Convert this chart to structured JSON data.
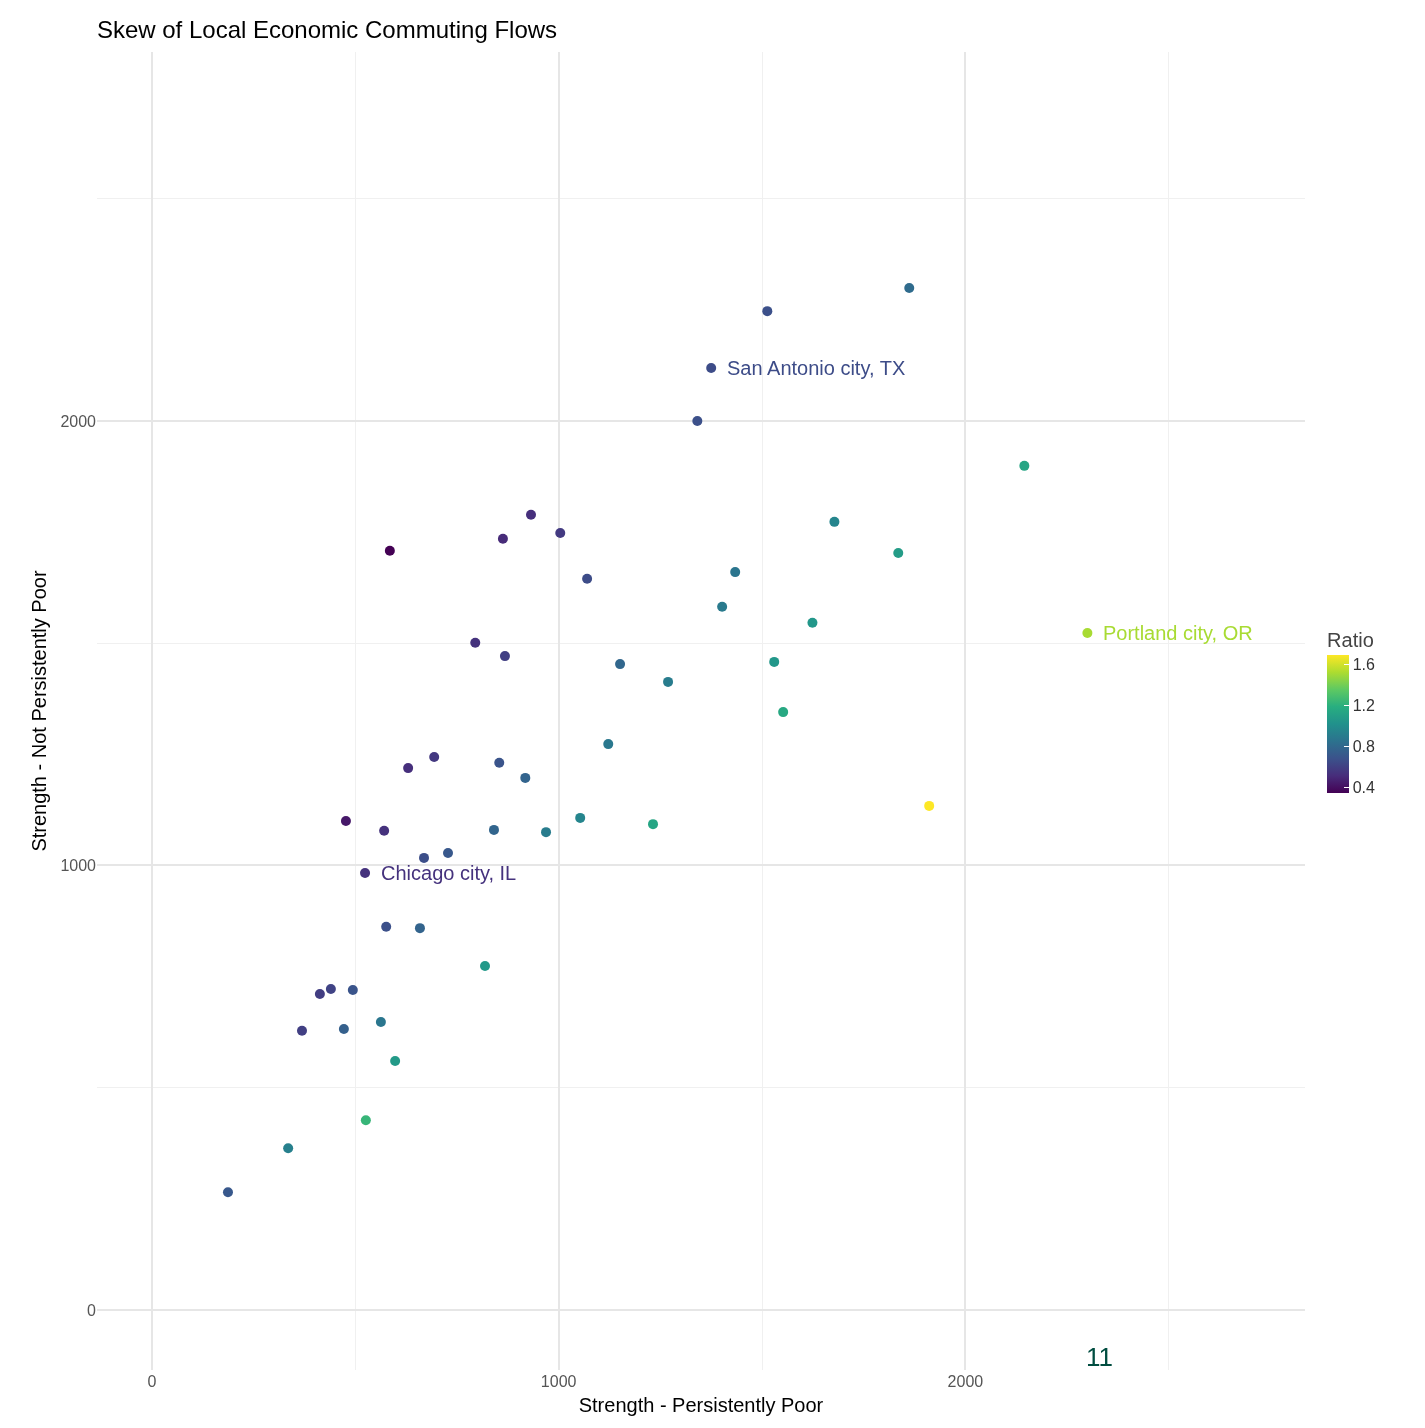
{
  "chart_data": {
    "type": "scatter",
    "title": "Skew of Local Economic Commuting Flows",
    "xlabel": "Strength - Persistently Poor",
    "ylabel": "Strength - Not Persistently Poor",
    "clabel": "Ratio",
    "x": [
      1862,
      1513,
      1375,
      1341,
      2145,
      932,
      1004,
      1678,
      585,
      863,
      1835,
      1070,
      1434,
      1402,
      1624,
      2300,
      795,
      868,
      1151,
      1530,
      1269,
      1552,
      1122,
      694,
      630,
      854,
      918,
      1911,
      477,
      571,
      841,
      969,
      1053,
      1232,
      669,
      728,
      524,
      576,
      659,
      819,
      413,
      440,
      494,
      369,
      472,
      563,
      598,
      526,
      335,
      187
    ],
    "values": [
      2299,
      2247,
      2119,
      2000,
      1899,
      1789,
      1748,
      1773,
      1708,
      1735,
      1703,
      1645,
      1660,
      1582,
      1546,
      1523,
      1501,
      1471,
      1453,
      1458,
      1413,
      1345,
      1273,
      1244,
      1219,
      1231,
      1197,
      1134,
      1100,
      1078,
      1080,
      1075,
      1107,
      1093,
      1017,
      1028,
      983,
      862,
      859,
      774,
      711,
      722,
      720,
      628,
      632,
      648,
      560,
      427,
      364,
      265
    ],
    "cvalues": [
      0.81,
      0.67,
      0.65,
      0.67,
      1.13,
      0.52,
      0.57,
      0.95,
      0.34,
      0.5,
      1.08,
      0.65,
      0.86,
      0.89,
      1.05,
      1.51,
      0.53,
      0.59,
      0.79,
      1.05,
      0.9,
      1.15,
      0.88,
      0.56,
      0.52,
      0.69,
      0.77,
      1.69,
      0.43,
      0.53,
      0.78,
      0.9,
      0.95,
      1.13,
      0.66,
      0.71,
      0.53,
      0.67,
      0.77,
      1.06,
      0.58,
      0.61,
      0.69,
      0.59,
      0.75,
      0.87,
      1.07,
      1.23,
      0.92,
      0.71
    ],
    "clim": [
      0.34,
      1.69
    ],
    "cticks": [
      0.4,
      0.8,
      1.2,
      1.6
    ],
    "xlim": [
      -135,
      2835
    ],
    "ylim": [
      -135,
      2830
    ],
    "xticks": [
      0,
      1000,
      2000
    ],
    "yticks": [
      0,
      1000,
      2000
    ],
    "grid": true,
    "legend": false,
    "marker": "circle",
    "annotations": [
      {
        "text": "San Antonio city, TX",
        "x": 1375,
        "y": 2119
      },
      {
        "text": "Portland city, OR",
        "x": 2300,
        "y": 1523
      },
      {
        "text": "Chicago city, IL",
        "x": 524,
        "y": 983
      },
      "11"
    ]
  }
}
